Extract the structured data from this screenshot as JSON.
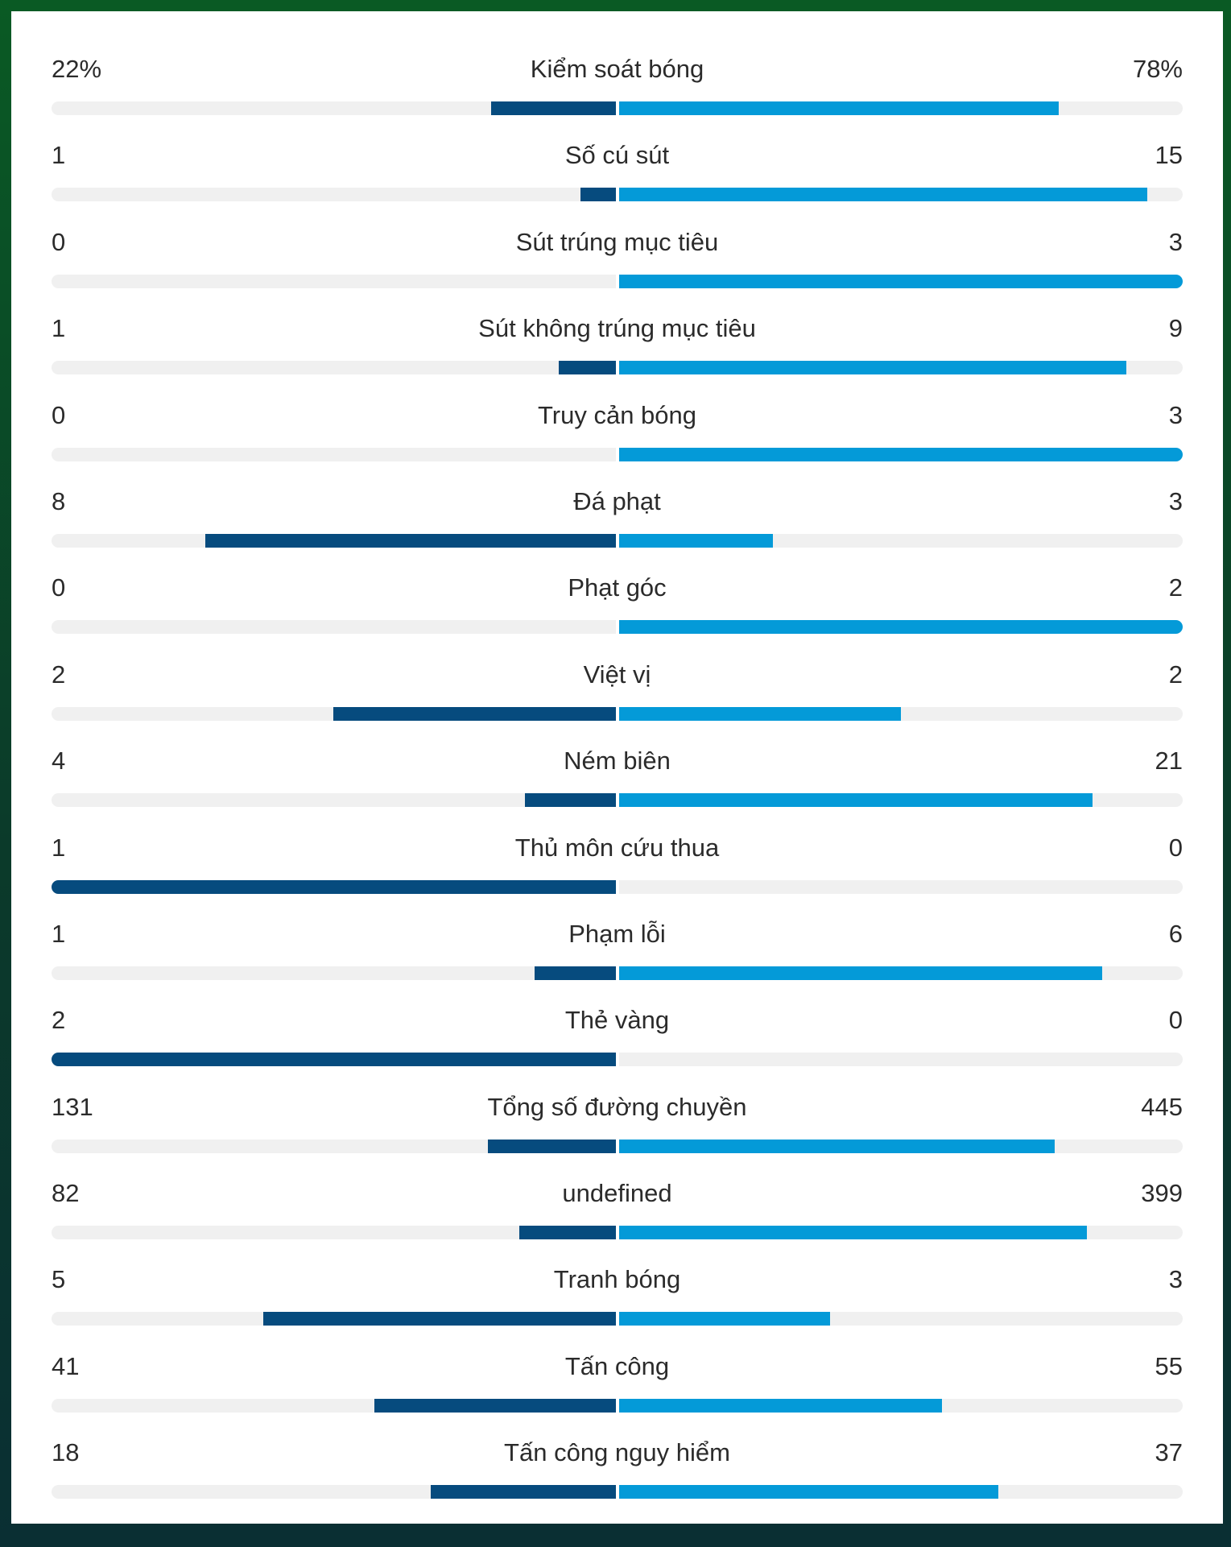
{
  "colors": {
    "home": "#064b7e",
    "away": "#049ad8",
    "track": "#f0f0f0"
  },
  "stats": [
    {
      "label": "Kiểm soát bóng",
      "home": "22%",
      "away": "78%",
      "home_frac": 0.22,
      "away_frac": 0.78
    },
    {
      "label": "Số cú sút",
      "home": "1",
      "away": "15",
      "home_frac": 0.0625,
      "away_frac": 0.9375
    },
    {
      "label": "Sút trúng mục tiêu",
      "home": "0",
      "away": "3",
      "home_frac": 0,
      "away_frac": 1
    },
    {
      "label": "Sút không trúng mục tiêu",
      "home": "1",
      "away": "9",
      "home_frac": 0.1,
      "away_frac": 0.9
    },
    {
      "label": "Truy cản bóng",
      "home": "0",
      "away": "3",
      "home_frac": 0,
      "away_frac": 1
    },
    {
      "label": "Đá phạt",
      "home": "8",
      "away": "3",
      "home_frac": 0.727,
      "away_frac": 0.273
    },
    {
      "label": "Phạt góc",
      "home": "0",
      "away": "2",
      "home_frac": 0,
      "away_frac": 1
    },
    {
      "label": "Việt vị",
      "home": "2",
      "away": "2",
      "home_frac": 0.5,
      "away_frac": 0.5
    },
    {
      "label": "Ném biên",
      "home": "4",
      "away": "21",
      "home_frac": 0.16,
      "away_frac": 0.84
    },
    {
      "label": "Thủ môn cứu thua",
      "home": "1",
      "away": "0",
      "home_frac": 1,
      "away_frac": 0
    },
    {
      "label": "Phạm lỗi",
      "home": "1",
      "away": "6",
      "home_frac": 0.143,
      "away_frac": 0.857
    },
    {
      "label": "Thẻ vàng",
      "home": "2",
      "away": "0",
      "home_frac": 1,
      "away_frac": 0
    },
    {
      "label": "Tổng số đường chuyền",
      "home": "131",
      "away": "445",
      "home_frac": 0.227,
      "away_frac": 0.773
    },
    {
      "label": "undefined",
      "home": "82",
      "away": "399",
      "home_frac": 0.17,
      "away_frac": 0.83
    },
    {
      "label": "Tranh bóng",
      "home": "5",
      "away": "3",
      "home_frac": 0.625,
      "away_frac": 0.375
    },
    {
      "label": "Tấn công",
      "home": "41",
      "away": "55",
      "home_frac": 0.427,
      "away_frac": 0.573
    },
    {
      "label": "Tấn công nguy hiểm",
      "home": "18",
      "away": "37",
      "home_frac": 0.327,
      "away_frac": 0.673
    }
  ]
}
